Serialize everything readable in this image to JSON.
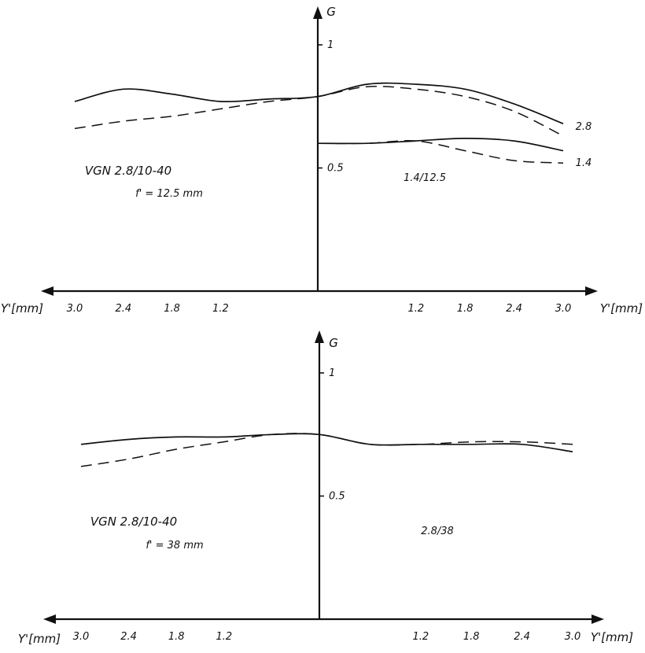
{
  "chart_data": [
    {
      "type": "line",
      "ylabel": "G",
      "xlabel": "Y'[mm]",
      "x_ticks_left": [
        "3.0",
        "2.4",
        "1.8",
        "1.2"
      ],
      "x_ticks_right": [
        "1.2",
        "1.8",
        "2.4",
        "3.0"
      ],
      "y_ticks": [
        "1",
        "0.5"
      ],
      "xlim": [
        -3.0,
        3.0
      ],
      "ylim": [
        0,
        1.0
      ],
      "annotations": {
        "lens": "VGN 2.8/10-40",
        "focal": "f' = 12.5 mm",
        "setting": "1.4/12.5"
      },
      "series": [
        {
          "name": "2.8",
          "style": "solid",
          "x": [
            -3.0,
            -2.4,
            -1.8,
            -1.2,
            -0.6,
            0,
            0.6,
            1.2,
            1.8,
            2.4,
            3.0
          ],
          "y": [
            0.77,
            0.82,
            0.8,
            0.77,
            0.78,
            0.79,
            0.84,
            0.84,
            0.82,
            0.76,
            0.68
          ]
        },
        {
          "name": "",
          "style": "dashed",
          "x": [
            -3.0,
            -2.4,
            -1.8,
            -1.2,
            -0.6,
            0,
            0.6,
            1.2,
            1.8,
            2.4,
            3.0
          ],
          "y": [
            0.66,
            0.69,
            0.71,
            0.74,
            0.77,
            0.79,
            0.83,
            0.82,
            0.79,
            0.73,
            0.63
          ]
        },
        {
          "name": "1.4",
          "style": "solid",
          "x": [
            0,
            0.6,
            1.2,
            1.8,
            2.4,
            3.0
          ],
          "y": [
            0.6,
            0.6,
            0.61,
            0.62,
            0.61,
            0.57
          ]
        },
        {
          "name": "",
          "style": "dashed",
          "x": [
            0,
            0.6,
            1.2,
            1.8,
            2.4,
            3.0
          ],
          "y": [
            0.6,
            0.6,
            0.61,
            0.57,
            0.53,
            0.52
          ]
        }
      ]
    },
    {
      "type": "line",
      "ylabel": "G",
      "xlabel": "Y'[mm]",
      "x_ticks_left": [
        "3.0",
        "2.4",
        "1.8",
        "1.2"
      ],
      "x_ticks_right": [
        "1.2",
        "1.8",
        "2.4",
        "3.0"
      ],
      "y_ticks": [
        "1",
        "0.5"
      ],
      "xlim": [
        -3.0,
        3.0
      ],
      "ylim": [
        0,
        1.0
      ],
      "annotations": {
        "lens": "VGN 2.8/10-40",
        "focal": "f' = 38 mm",
        "setting": "2.8/38"
      },
      "series": [
        {
          "name": "",
          "style": "solid",
          "x": [
            -3.0,
            -2.4,
            -1.8,
            -1.2,
            -0.6,
            0,
            0.6,
            1.2,
            1.8,
            2.4,
            3.0
          ],
          "y": [
            0.71,
            0.73,
            0.74,
            0.74,
            0.75,
            0.75,
            0.71,
            0.71,
            0.71,
            0.71,
            0.68
          ]
        },
        {
          "name": "",
          "style": "dashed",
          "x": [
            -3.0,
            -2.4,
            -1.8,
            -1.2,
            -0.6,
            0,
            0.6,
            1.2,
            1.8,
            2.4,
            3.0
          ],
          "y": [
            0.62,
            0.65,
            0.69,
            0.72,
            0.75,
            0.75,
            0.71,
            0.71,
            0.72,
            0.72,
            0.71
          ]
        }
      ]
    }
  ]
}
